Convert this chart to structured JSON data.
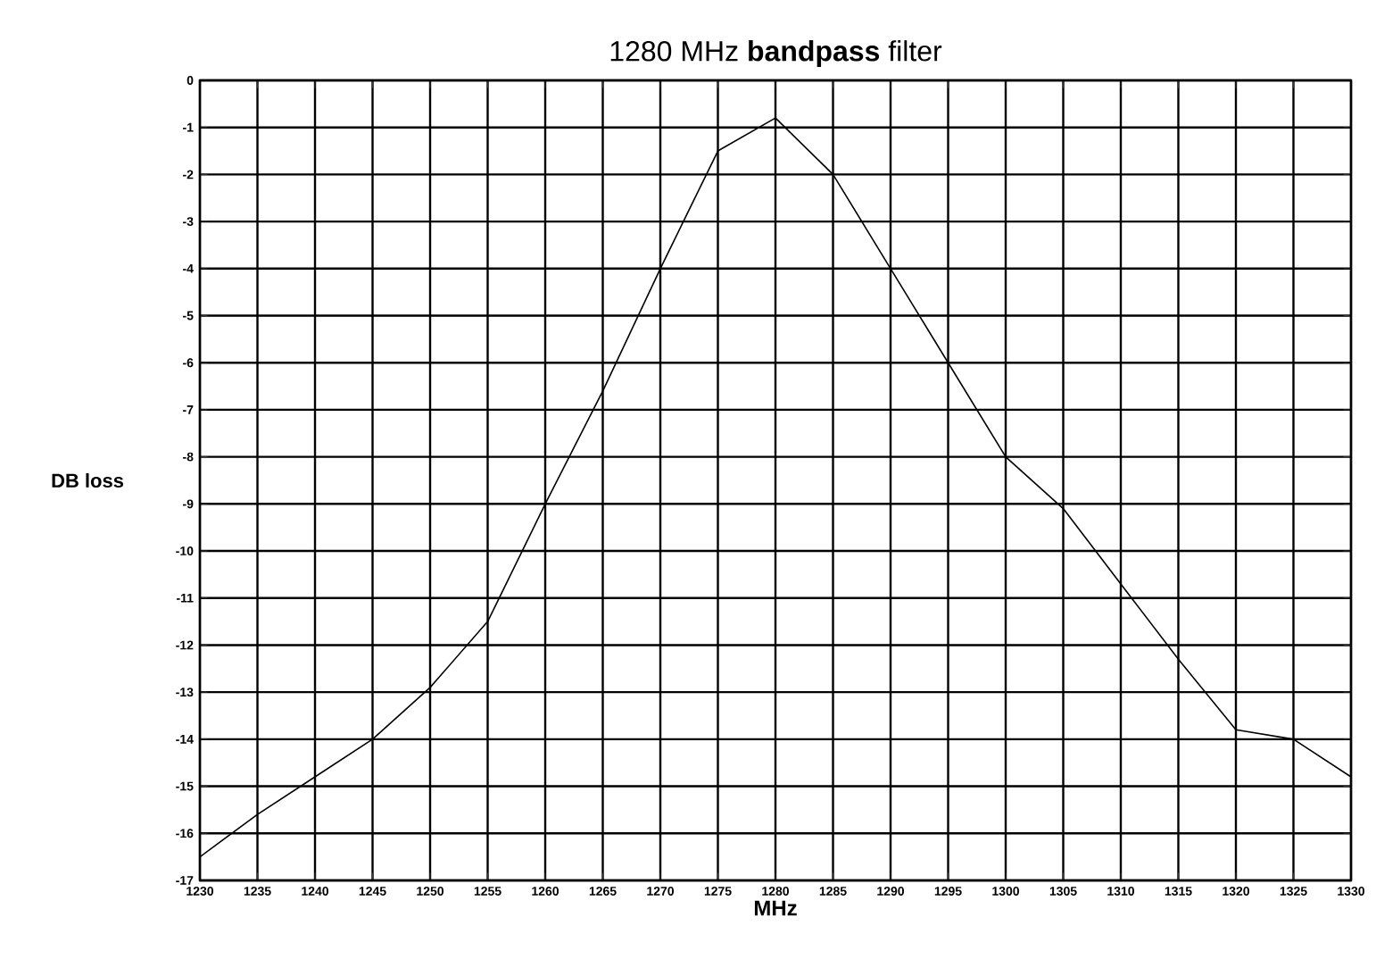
{
  "chart_data": {
    "type": "line",
    "title": "1280  MHz **bandpass** filter",
    "xlabel": "MHz",
    "ylabel": "DB loss",
    "x": [
      1230,
      1235,
      1240,
      1245,
      1250,
      1255,
      1260,
      1265,
      1270,
      1275,
      1280,
      1285,
      1290,
      1295,
      1300,
      1305,
      1310,
      1315,
      1320,
      1325,
      1330
    ],
    "series": [
      {
        "color": "#000000",
        "values": [
          -16.5,
          -15.6,
          -14.8,
          -14.0,
          -12.9,
          -11.5,
          -9.0,
          -6.6,
          -4.0,
          -1.5,
          -0.8,
          -2.0,
          -4.0,
          -6.0,
          -8.0,
          -9.1,
          -10.7,
          -12.3,
          -13.8,
          -14.0,
          -14.8
        ]
      }
    ],
    "xlim": [
      1230,
      1330
    ],
    "xticks": [
      1230,
      1235,
      1240,
      1245,
      1250,
      1255,
      1260,
      1265,
      1270,
      1275,
      1280,
      1285,
      1290,
      1295,
      1300,
      1305,
      1310,
      1315,
      1320,
      1325,
      1330
    ],
    "ylim": [
      -17,
      0
    ],
    "yticks": [
      -17,
      -16,
      -15,
      -14,
      -13,
      -12,
      -11,
      -10,
      -9,
      -8,
      -7,
      -6,
      -5,
      -4,
      -3,
      -2,
      -1,
      0
    ],
    "grid": true,
    "marker": "none",
    "line_style": "solid"
  }
}
